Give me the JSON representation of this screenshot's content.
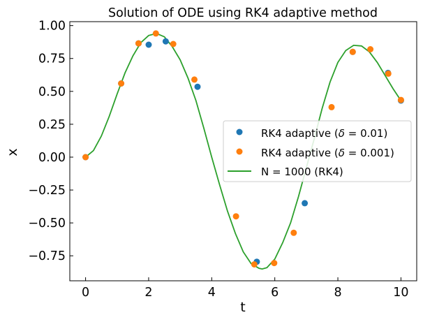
{
  "chart_data": {
    "type": "scatter",
    "title": "Solution of ODE using RK4 adaptive method",
    "xlabel": "t",
    "ylabel": "x",
    "xlim": [
      -0.5,
      10.5
    ],
    "ylim": [
      -0.94,
      1.03
    ],
    "xticks": [
      0,
      2,
      4,
      6,
      8,
      10
    ],
    "xtick_labels": [
      "0",
      "2",
      "4",
      "6",
      "8",
      "10"
    ],
    "yticks": [
      -0.75,
      -0.5,
      -0.25,
      0.0,
      0.25,
      0.5,
      0.75,
      1.0
    ],
    "ytick_labels": [
      "−0.75",
      "−0.50",
      "−0.25",
      "0.00",
      "0.25",
      "0.50",
      "0.75",
      "1.00"
    ],
    "grid": false,
    "legend_position": "center-right",
    "series": [
      {
        "name": "RK4 adaptive (δ = 0.01)",
        "legend_prefix": "RK4 adaptive (",
        "legend_delta": "δ",
        "legend_suffix": " = 0.01)",
        "kind": "scatter",
        "color": "#1f77b4",
        "x": [
          0.0,
          1.13,
          1.68,
          2.0,
          2.54,
          3.55,
          5.43,
          6.95,
          8.47,
          9.59,
          10.0
        ],
        "y": [
          0.0,
          0.56,
          0.865,
          0.855,
          0.88,
          0.535,
          -0.795,
          -0.35,
          0.8,
          0.64,
          0.43
        ]
      },
      {
        "name": "RK4 adaptive (δ = 0.001)",
        "legend_prefix": "RK4 adaptive (",
        "legend_delta": "δ",
        "legend_suffix": " = 0.001)",
        "kind": "scatter",
        "color": "#ff7f0e",
        "x": [
          0.0,
          1.13,
          1.68,
          2.23,
          2.78,
          3.45,
          4.77,
          5.35,
          5.98,
          6.6,
          7.8,
          8.47,
          9.03,
          9.6,
          10.0
        ],
        "y": [
          0.0,
          0.56,
          0.865,
          0.94,
          0.86,
          0.59,
          -0.45,
          -0.815,
          -0.805,
          -0.575,
          0.38,
          0.8,
          0.82,
          0.635,
          0.435
        ]
      },
      {
        "name": "N = 1000 (RK4)",
        "legend_prefix": "N = 1000 (RK4)",
        "kind": "line",
        "color": "#2ca02c",
        "x": [
          0,
          0.25,
          0.5,
          0.75,
          1.0,
          1.25,
          1.5,
          1.75,
          2.0,
          2.25,
          2.5,
          2.75,
          3.0,
          3.25,
          3.5,
          3.75,
          4.0,
          4.25,
          4.5,
          4.75,
          5.0,
          5.25,
          5.5,
          5.6,
          5.75,
          6.0,
          6.25,
          6.5,
          6.75,
          7.0,
          7.25,
          7.5,
          7.75,
          8.0,
          8.25,
          8.5,
          8.75,
          9.0,
          9.25,
          9.5,
          9.75,
          10.0
        ],
        "y": [
          0.0,
          0.05,
          0.16,
          0.31,
          0.48,
          0.64,
          0.77,
          0.87,
          0.925,
          0.94,
          0.915,
          0.84,
          0.74,
          0.6,
          0.43,
          0.22,
          0.0,
          -0.21,
          -0.41,
          -0.58,
          -0.72,
          -0.81,
          -0.845,
          -0.85,
          -0.84,
          -0.775,
          -0.65,
          -0.5,
          -0.3,
          -0.08,
          0.14,
          0.37,
          0.57,
          0.72,
          0.81,
          0.85,
          0.845,
          0.8,
          0.72,
          0.62,
          0.52,
          0.43
        ]
      }
    ]
  }
}
